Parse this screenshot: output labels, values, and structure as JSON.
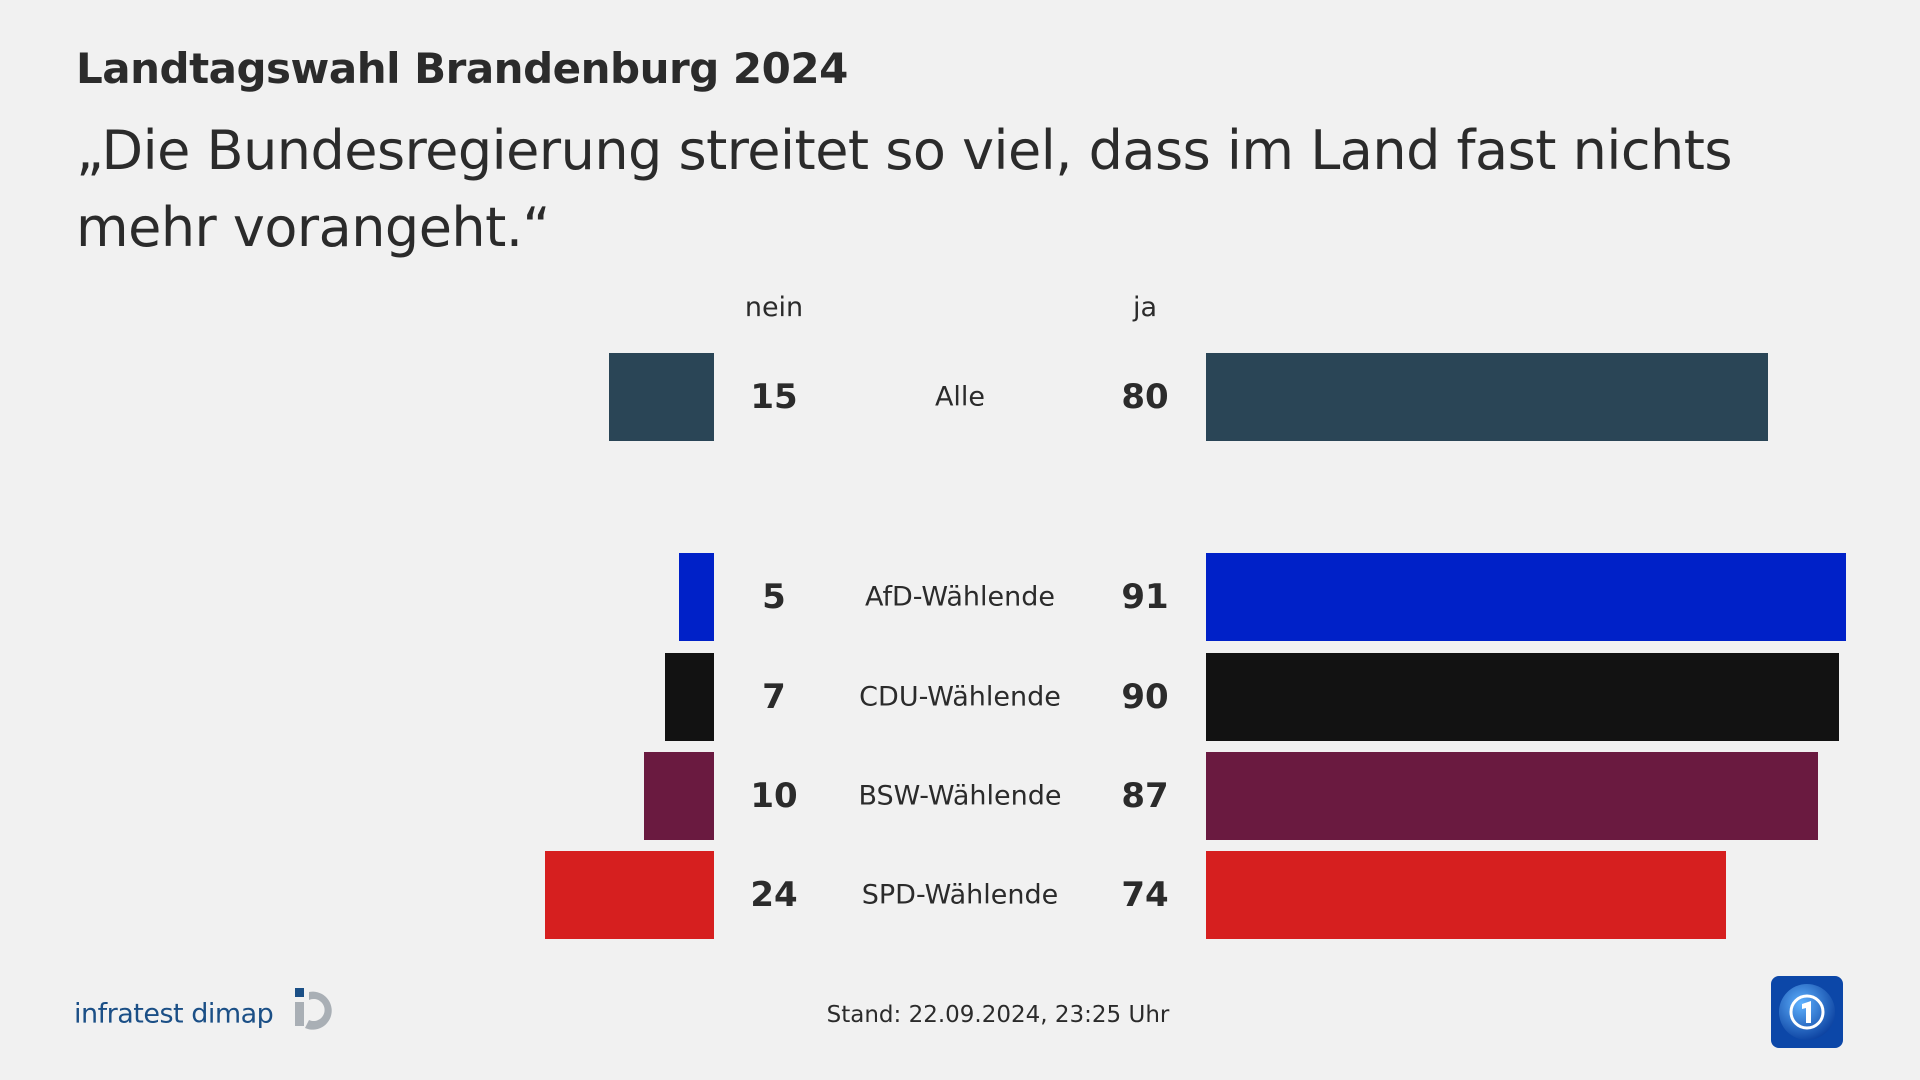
{
  "header": {
    "title": "Landtagswahl Brandenburg 2024",
    "subtitle": "„Die Bundesregierung streitet so viel, dass im Land fast nichts mehr vorangeht.“"
  },
  "chart_data": {
    "type": "bar",
    "orientation": "diverging-horizontal",
    "column_labels": {
      "left": "nein",
      "right": "ja"
    },
    "categories": [
      "Alle",
      "AfD-Wählende",
      "CDU-Wählende",
      "BSW-Wählende",
      "SPD-Wählende"
    ],
    "series": [
      {
        "name": "nein",
        "values": [
          15,
          5,
          7,
          10,
          24
        ]
      },
      {
        "name": "ja",
        "values": [
          80,
          91,
          90,
          87,
          74
        ]
      }
    ],
    "colors": [
      "#2a4556",
      "#0021c8",
      "#121212",
      "#6a1a40",
      "#d61f1f"
    ],
    "unit": "%"
  },
  "footer": {
    "stand": "Stand:  22.09.2024, 23:25 Uhr",
    "source_logo": "infratest dimap",
    "broadcaster_logo": "tagesschau-globe-icon"
  }
}
